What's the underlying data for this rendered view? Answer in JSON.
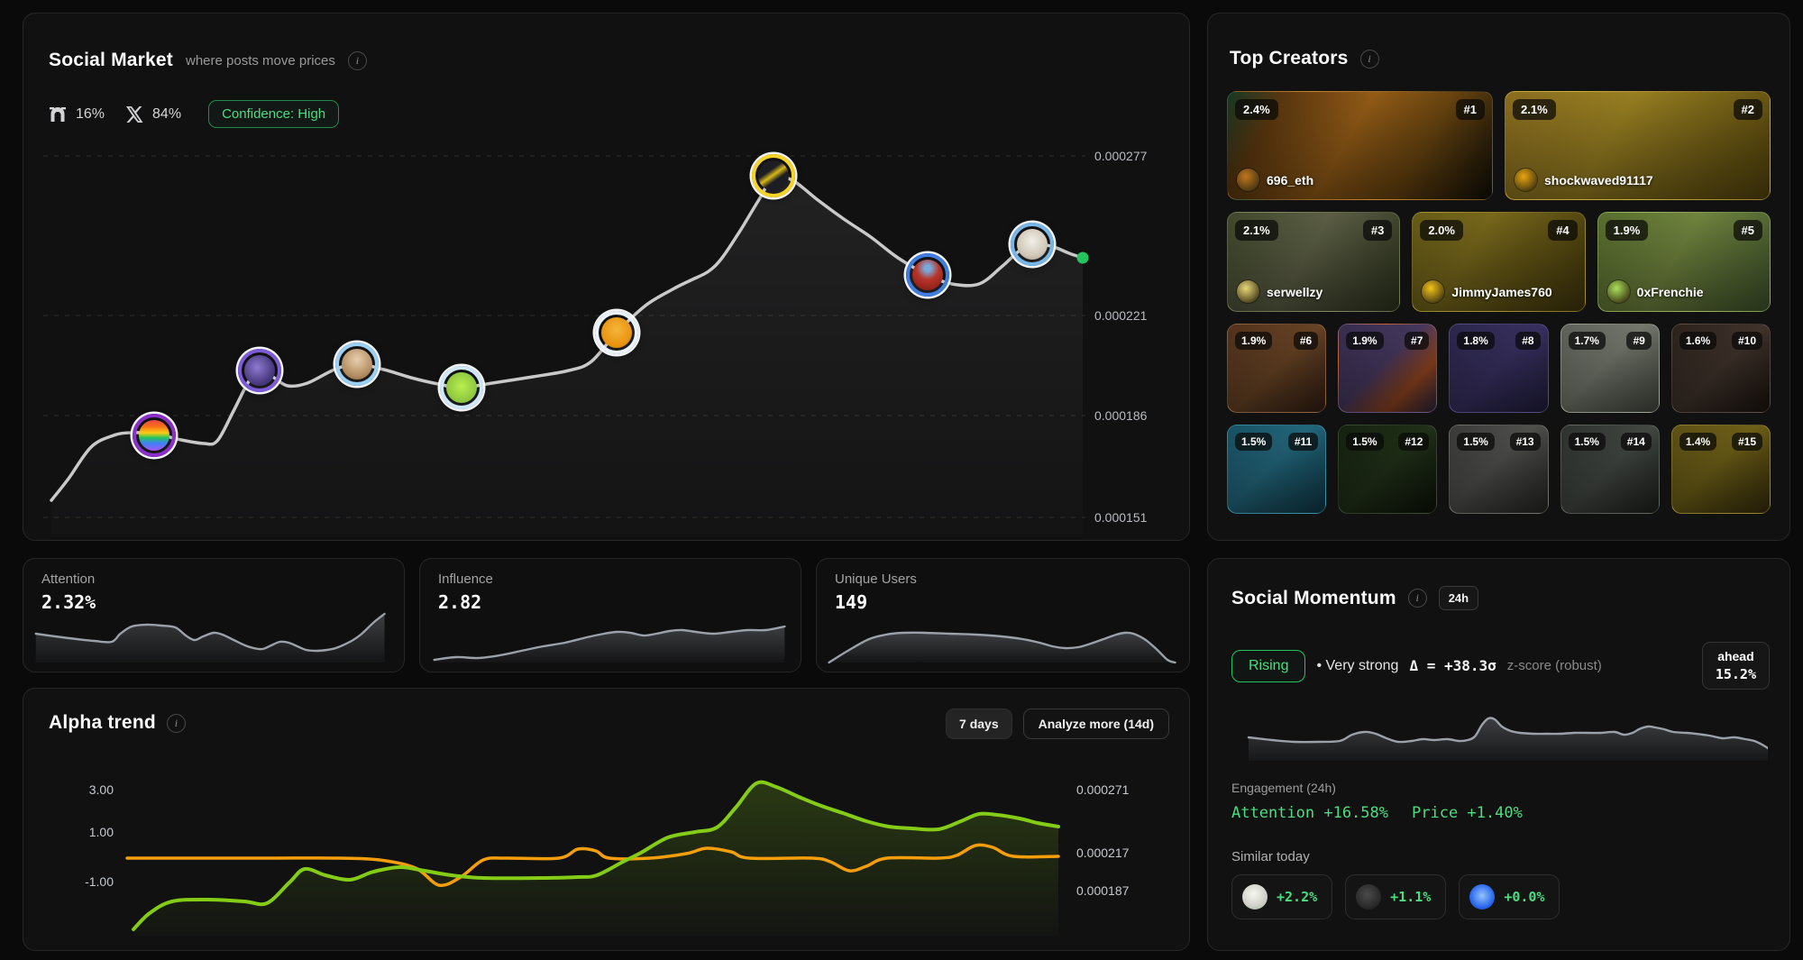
{
  "social_market": {
    "title": "Social Market",
    "subtitle": "where posts move prices",
    "farcaster_pct": "16%",
    "x_pct": "84%",
    "confidence_label": "Confidence: High",
    "y_axis": [
      "0.000277",
      "0.000221",
      "0.000186",
      "0.000151"
    ]
  },
  "metrics": [
    {
      "label": "Attention",
      "value": "2.32%"
    },
    {
      "label": "Influence",
      "value": "2.82"
    },
    {
      "label": "Unique Users",
      "value": "149"
    }
  ],
  "alpha_trend": {
    "title": "Alpha trend",
    "range_button": "7 days",
    "analyze_button": "Analyze more (14d)",
    "left_axis": [
      "3.00",
      "1.00",
      "-1.00"
    ],
    "right_axis": [
      "0.000271",
      "0.000217",
      "0.000187"
    ]
  },
  "top_creators": {
    "title": "Top Creators",
    "creators": [
      {
        "rank": "#1",
        "pct": "2.4%",
        "name": "696_eth"
      },
      {
        "rank": "#2",
        "pct": "2.1%",
        "name": "shockwaved91117"
      },
      {
        "rank": "#3",
        "pct": "2.1%",
        "name": "serwellzy"
      },
      {
        "rank": "#4",
        "pct": "2.0%",
        "name": "JimmyJames760"
      },
      {
        "rank": "#5",
        "pct": "1.9%",
        "name": "0xFrenchie"
      },
      {
        "rank": "#6",
        "pct": "1.9%",
        "name": ""
      },
      {
        "rank": "#7",
        "pct": "1.9%",
        "name": ""
      },
      {
        "rank": "#8",
        "pct": "1.8%",
        "name": ""
      },
      {
        "rank": "#9",
        "pct": "1.7%",
        "name": ""
      },
      {
        "rank": "#10",
        "pct": "1.6%",
        "name": ""
      },
      {
        "rank": "#11",
        "pct": "1.5%",
        "name": ""
      },
      {
        "rank": "#12",
        "pct": "1.5%",
        "name": ""
      },
      {
        "rank": "#13",
        "pct": "1.5%",
        "name": ""
      },
      {
        "rank": "#14",
        "pct": "1.5%",
        "name": ""
      },
      {
        "rank": "#15",
        "pct": "1.4%",
        "name": ""
      }
    ]
  },
  "social_momentum": {
    "title": "Social Momentum",
    "window": "24h",
    "status": "Rising",
    "strength": "• Very strong",
    "delta": "Δ = +38.3σ",
    "delta_note": "z-score (robust)",
    "ahead_label": "ahead",
    "ahead_value": "15.2%",
    "engagement_label": "Engagement (24h)",
    "attention_change": "Attention +16.58%",
    "price_change": "Price +1.40%",
    "similar_label": "Similar today",
    "similar": [
      {
        "icon": "bird-avatar",
        "pct": "+2.2%"
      },
      {
        "icon": "loop-avatar",
        "pct": "+1.1%"
      },
      {
        "icon": "snowflake-avatar",
        "pct": "+0.0%"
      }
    ]
  },
  "colors": {
    "accent_green": "#4ade80",
    "status_green": "#22c55e",
    "price_line": "#c9c9c9",
    "alpha_line": "#84cc16",
    "secondary_line": "#f59e0b",
    "spark_gray": "#9aa1a8"
  },
  "chart_data": [
    {
      "type": "line",
      "title": "Social Market price",
      "ylabel": "price",
      "y_ticks": [
        0.000277,
        0.000221,
        0.000186,
        0.000151
      ],
      "ylim": [
        0.000145,
        0.000285
      ],
      "grid": "dashed-horizontal",
      "values": [
        0.000156,
        0.000175,
        0.00018,
        0.00018,
        0.000176,
        0.000188,
        0.000202,
        0.000196,
        0.000204,
        0.000199,
        0.000196,
        0.0002,
        0.000205,
        0.000215,
        0.00023,
        0.000241,
        0.000269,
        0.000268,
        0.000255,
        0.000241,
        0.000235,
        0.000232,
        0.000246,
        0.000241
      ],
      "avatar_marker_indices": [
        3,
        6,
        8,
        10,
        13,
        16,
        20,
        22
      ],
      "end_value": 0.000241
    },
    {
      "type": "area",
      "title": "Attention sparkline",
      "current": "2.32%",
      "values": [
        58,
        55,
        52,
        50,
        49,
        58,
        66,
        68,
        67,
        65,
        56,
        49,
        53,
        57,
        55,
        49,
        43,
        40,
        39,
        43,
        47,
        46,
        42,
        38,
        37,
        38,
        40,
        44,
        49,
        58,
        77,
        94
      ]
    },
    {
      "type": "area",
      "title": "Influence sparkline",
      "current": "2.82",
      "values": [
        11,
        16,
        14,
        19,
        27,
        35,
        42,
        52,
        58,
        61,
        60,
        55,
        58,
        63,
        64,
        61,
        58,
        61,
        64,
        64,
        71
      ]
    },
    {
      "type": "area",
      "title": "Unique Users sparkline",
      "current": "149",
      "values": [
        6,
        27,
        48,
        56,
        60,
        60,
        58,
        56,
        53,
        48,
        42,
        35,
        32,
        34,
        40,
        48,
        56,
        60,
        58,
        48,
        31,
        11,
        6
      ]
    },
    {
      "type": "line",
      "title": "Alpha trend (7 days)",
      "left_axis_ticks": [
        3.0,
        1.0,
        -1.0
      ],
      "right_axis_ticks": [
        0.000271,
        0.000217,
        0.000187
      ],
      "series": [
        {
          "name": "alpha",
          "color": "#84cc16",
          "values": [
            -3.0,
            -2.2,
            -1.8,
            -1.8,
            -1.9,
            -0.5,
            -1.0,
            -0.4,
            -0.8,
            -0.9,
            -0.9,
            0.2,
            1.0,
            2.0,
            3.1,
            2.5,
            1.8,
            1.3,
            1.1,
            1.1,
            1.8,
            1.6,
            1.3,
            1.3
          ]
        },
        {
          "name": "secondary",
          "color": "#f59e0b",
          "values": [
            0.0,
            0.0,
            0.0,
            -0.1,
            -1.2,
            -0.1,
            0.0,
            0.3,
            0.0,
            0.0,
            0.3,
            0.0,
            0.0,
            -0.2,
            -0.6,
            0.0,
            0.0,
            0.0,
            0.5,
            -0.1,
            0.0
          ]
        }
      ]
    },
    {
      "type": "area",
      "title": "Engagement (24h) sparkline",
      "values": [
        52,
        48,
        45,
        45,
        47,
        56,
        60,
        57,
        51,
        45,
        47,
        49,
        48,
        47,
        49,
        53,
        71,
        80,
        78,
        68,
        59,
        58,
        57,
        58,
        59,
        60,
        56,
        63,
        68,
        66,
        64,
        60,
        57,
        55,
        51,
        49,
        46,
        38,
        30,
        24
      ]
    }
  ]
}
